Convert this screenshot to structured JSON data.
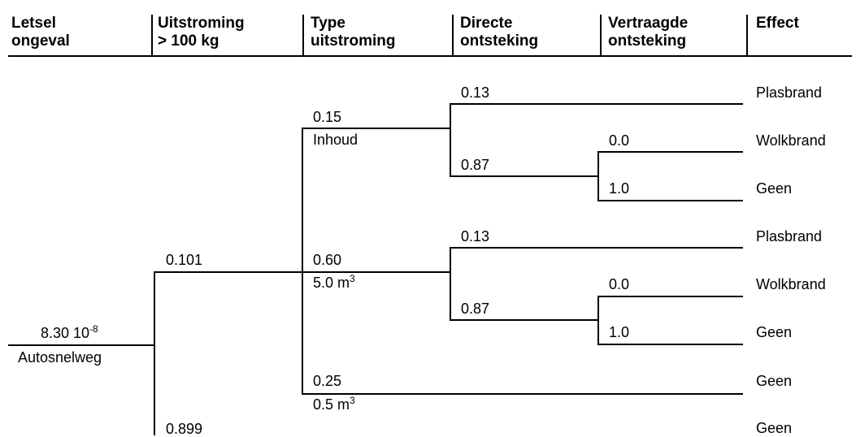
{
  "headers": [
    {
      "line1": "Letsel",
      "line2": "ongeval"
    },
    {
      "line1": "Uitstroming",
      "line2": "> 100 kg"
    },
    {
      "line1": "Type",
      "line2": "uitstroming"
    },
    {
      "line1": "Directe",
      "line2": "ontsteking"
    },
    {
      "line1": "Vertraagde",
      "line2": "ontsteking"
    },
    {
      "line1": "Effect",
      "line2": ""
    }
  ],
  "root": {
    "value": "8.30 10",
    "exp": "-8",
    "label": "Autosnelweg"
  },
  "release": {
    "yes": "0.101",
    "no": "0.899"
  },
  "types": [
    {
      "prob": "0.15",
      "label": "Inhoud",
      "sup": ""
    },
    {
      "prob": "0.60",
      "label": "5.0 m",
      "sup": "3"
    },
    {
      "prob": "0.25",
      "label": "0.5 m",
      "sup": "3"
    }
  ],
  "direct": {
    "yes": "0.13",
    "no": "0.87"
  },
  "delayed": {
    "yes": "0.0",
    "no": "1.0"
  },
  "effects": [
    "Plasbrand",
    "Wolkbrand",
    "Geen",
    "Plasbrand",
    "Wolkbrand",
    "Geen",
    "Geen",
    "Geen"
  ]
}
